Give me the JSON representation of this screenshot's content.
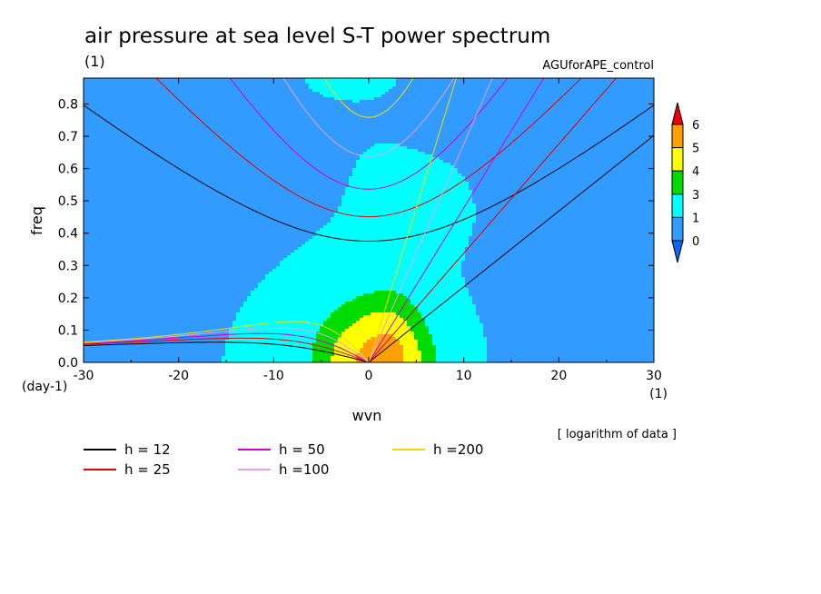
{
  "chart_data": {
    "type": "heatmap",
    "title": "air pressure at sea level S-T power spectrum",
    "units": "(1)",
    "experiment": "AGUforAPE_control",
    "xlabel": "wvn",
    "x_unit": "(1)",
    "ylabel": "freq",
    "y_unit": "(day-1)",
    "xlim": [
      -30,
      30
    ],
    "ylim": [
      0,
      0.88
    ],
    "x_ticks": [
      "-30",
      "-20",
      "-10",
      "0",
      "10",
      "20",
      "30"
    ],
    "y_ticks": [
      "0.0",
      "0.1",
      "0.2",
      "0.3",
      "0.4",
      "0.5",
      "0.6",
      "0.7",
      "0.8"
    ],
    "note": "[ logarithm of data ]",
    "colorbar": {
      "levels": [
        "0",
        "1",
        "3",
        "4",
        "5",
        "6"
      ],
      "colors": [
        "#1464f0",
        "#329bff",
        "#00ffff",
        "#00dc00",
        "#ffff00",
        "#ffa000",
        "#f00000"
      ]
    },
    "contour_levels": [
      0,
      1,
      3,
      4,
      5,
      6
    ],
    "dispersion_curves": [
      {
        "label": "h = 12",
        "h": 12,
        "color": "#000000"
      },
      {
        "label": "h = 25",
        "h": 25,
        "color": "#e60000"
      },
      {
        "label": "h = 50",
        "h": 50,
        "color": "#d200d2"
      },
      {
        "label": "h =100",
        "h": 100,
        "color": "#e6a0e6"
      },
      {
        "label": "h =200",
        "h": 200,
        "color": "#f0dc00"
      }
    ]
  }
}
